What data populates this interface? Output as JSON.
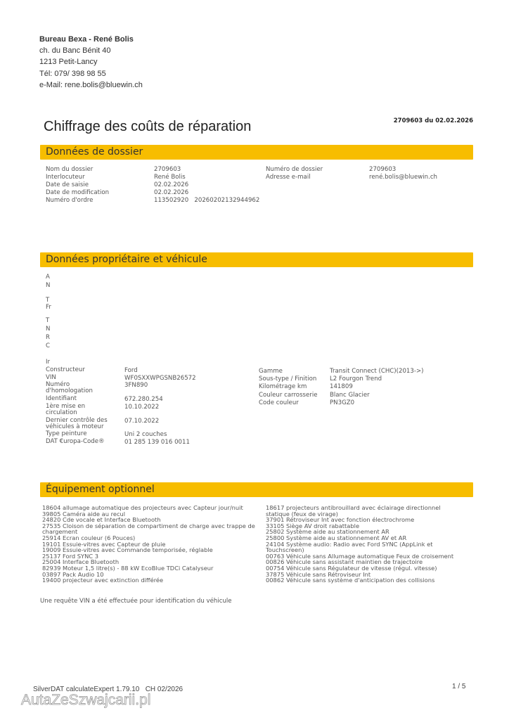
{
  "sender": {
    "name": "Bureau Bexa - René Bolis",
    "street": "ch. du Banc Bénit 40",
    "city": "1213 Petit-Lancy",
    "phone": "Tél: 079/ 398 98 55",
    "email": "e-Mail: rene.bolis@bluewin.ch"
  },
  "title": "Chiffrage des coûts de réparation",
  "reference": "2709603 du 02.02.2026",
  "accent_color": "#f7bd00",
  "dossier": {
    "heading": "Données de dossier",
    "left": [
      {
        "label": "Nom du dossier",
        "value": "2709603"
      },
      {
        "label": "Interlocuteur",
        "value": "René Bolis"
      },
      {
        "label": "Date de saisie",
        "value": "02.02.2026"
      },
      {
        "label": "Date de modification",
        "value": "02.02.2026"
      },
      {
        "label": "Numéro d'ordre",
        "value": "113502920   20260202132944962"
      }
    ],
    "right": [
      {
        "label": "Numéro de dossier",
        "value": "2709603"
      },
      {
        "label": "Adresse e-mail",
        "value": "rené.bolis@bluewin.ch"
      }
    ]
  },
  "vehicle": {
    "heading": "Données propriétaire et véhicule",
    "truncated": [
      "A",
      "N",
      "T",
      "Fr",
      "T",
      "N",
      "R",
      "C",
      "Ir"
    ],
    "left": [
      {
        "label": "Constructeur",
        "value": "Ford"
      },
      {
        "label": "VIN",
        "value": "WF0SXXWPGSNB26572"
      },
      {
        "label": "Numéro d'homologation",
        "value": "3FN890"
      },
      {
        "label": "Identifiant",
        "value": "672.280.254"
      },
      {
        "label": "1ère mise en circulation",
        "value": "10.10.2022"
      },
      {
        "label": "Dernier contrôle des véhicules à moteur",
        "value": "07.10.2022"
      },
      {
        "label": "Type peinture",
        "value": "Uni 2 couches"
      },
      {
        "label": "DAT €uropa-Code®",
        "value": "01 285 139 016 0011"
      }
    ],
    "right": [
      {
        "label": "Gamme",
        "value": "Transit Connect (CHC)(2013->)"
      },
      {
        "label": "Sous-type / Finition",
        "value": "L2 Fourgon Trend"
      },
      {
        "label": "Kilométrage km",
        "value": "141809"
      },
      {
        "label": "Couleur carrosserie",
        "value": "Blanc Glacier"
      },
      {
        "label": "Code couleur",
        "value": "PN3GZ0"
      }
    ]
  },
  "equipment": {
    "heading": "Équipement optionnel",
    "left": [
      "18604 allumage automatique des projecteurs avec Capteur jour/nuit",
      "39805 Caméra aide au recul",
      "24820 Cde vocale et Interface Bluetooth",
      "27535 Cloison de séparation de compartiment de charge avec trappe de chargement",
      "25914 Ecran couleur (6 Pouces)",
      "19101 Essuie-vitres avec Capteur de pluie",
      "19009 Essuie-vitres avec Commande temporisée, réglable",
      "25137 Ford SYNC 3",
      "25004 Interface Bluetooth",
      "82939 Moteur 1,5 litre(s) - 88 kW EcoBlue TDCi Catalyseur",
      "03897 Pack Audio 10",
      "19400 projecteur avec extinction différée"
    ],
    "right": [
      "18617 projecteurs antibrouillard avec éclairage directionnel statique (feux de virage)",
      "37901 Rétroviseur Int avec fonction électrochrome",
      "33105 Siège AV droit rabattable",
      "25802 Système aide au stationnement AR",
      "25800 Système aide au stationnement AV et AR",
      "24104 Système audio: Radio avec Ford SYNC (AppLink et Touchscreen)",
      "00763 Véhicule sans Allumage automatique Feux de croisement",
      "00826 Véhicule sans assistant maintien de trajectoire",
      "00754 Véhicule sans Régulateur de vitesse (régul. vitesse)",
      "37875 Véhicule sans Rétroviseur Int",
      "00862 Véhicule sans système d'anticipation des collisions"
    ]
  },
  "vin_note": "Une requête VIN a été effectuée pour identification du véhicule",
  "footer": {
    "software": "SilverDAT calculateExpert 1.79.10   CH 02/2026",
    "page": "1 / 5",
    "watermark": "AutaZeSzwajcarii.pl"
  }
}
